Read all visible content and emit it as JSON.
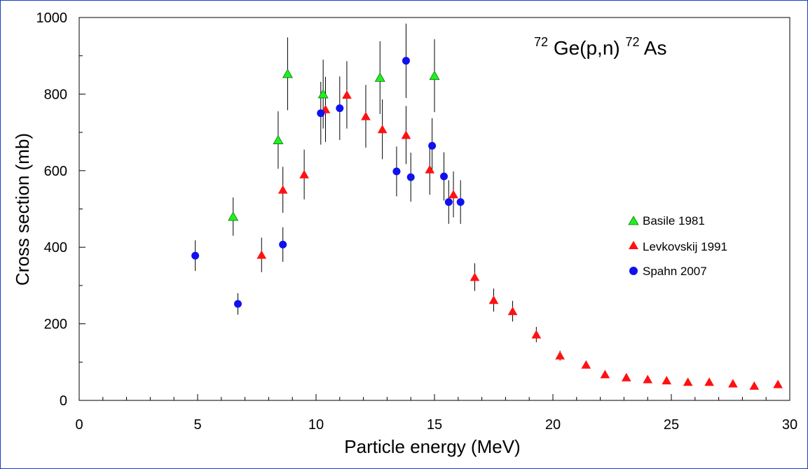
{
  "chart_data": {
    "type": "scatter",
    "title_parts": {
      "sup1": "72",
      "main1": "Ge(p,n)",
      "sup2": "72",
      "main2": "As"
    },
    "xlabel": "Particle energy (MeV)",
    "ylabel": "Cross section (mb)",
    "xlim": [
      0,
      30
    ],
    "ylim": [
      0,
      1000
    ],
    "xticks": [
      0,
      5,
      10,
      15,
      20,
      25,
      30
    ],
    "yticks": [
      0,
      200,
      400,
      600,
      800,
      1000
    ],
    "xtick_labels": [
      "0",
      "5",
      "10",
      "15",
      "20",
      "25",
      "30"
    ],
    "ytick_labels": [
      "0",
      "200",
      "400",
      "600",
      "800",
      "1000"
    ],
    "grid": false,
    "legend_position": "right",
    "series": [
      {
        "name": "Basile 1981",
        "marker": "triangle",
        "color": "#22ee22",
        "points": [
          {
            "x": 6.5,
            "y": 480,
            "err": 50
          },
          {
            "x": 8.4,
            "y": 680,
            "err": 75
          },
          {
            "x": 8.8,
            "y": 853,
            "err": 95
          },
          {
            "x": 10.3,
            "y": 800,
            "err": 90
          },
          {
            "x": 12.7,
            "y": 843,
            "err": 95
          },
          {
            "x": 15.0,
            "y": 848,
            "err": 95
          }
        ]
      },
      {
        "name": "Levkovskij 1991",
        "marker": "triangle",
        "color": "#ff1111",
        "points": [
          {
            "x": 7.7,
            "y": 380,
            "err": 45
          },
          {
            "x": 8.6,
            "y": 550,
            "err": 60
          },
          {
            "x": 9.5,
            "y": 590,
            "err": 65
          },
          {
            "x": 10.4,
            "y": 760,
            "err": 85
          },
          {
            "x": 11.3,
            "y": 798,
            "err": 88
          },
          {
            "x": 12.1,
            "y": 742,
            "err": 82
          },
          {
            "x": 12.8,
            "y": 708,
            "err": 78
          },
          {
            "x": 13.8,
            "y": 693,
            "err": 76
          },
          {
            "x": 14.8,
            "y": 603,
            "err": 66
          },
          {
            "x": 15.8,
            "y": 538,
            "err": 60
          },
          {
            "x": 16.7,
            "y": 322,
            "err": 36
          },
          {
            "x": 17.5,
            "y": 262,
            "err": 30
          },
          {
            "x": 18.3,
            "y": 233,
            "err": 27
          },
          {
            "x": 19.3,
            "y": 172,
            "err": 20
          },
          {
            "x": 20.3,
            "y": 117,
            "err": 13
          },
          {
            "x": 21.4,
            "y": 93,
            "err": 10
          },
          {
            "x": 22.2,
            "y": 68,
            "err": 8
          },
          {
            "x": 23.1,
            "y": 60,
            "err": 7
          },
          {
            "x": 24.0,
            "y": 55,
            "err": 6
          },
          {
            "x": 24.8,
            "y": 52,
            "err": 6
          },
          {
            "x": 25.7,
            "y": 48,
            "err": 5
          },
          {
            "x": 26.6,
            "y": 48,
            "err": 5
          },
          {
            "x": 27.6,
            "y": 44,
            "err": 5
          },
          {
            "x": 28.5,
            "y": 38,
            "err": 4
          },
          {
            "x": 29.5,
            "y": 42,
            "err": 5
          }
        ]
      },
      {
        "name": "Spahn 2007",
        "marker": "circle",
        "color": "#1111ee",
        "points": [
          {
            "x": 4.9,
            "y": 378,
            "err": 40
          },
          {
            "x": 6.7,
            "y": 252,
            "err": 28
          },
          {
            "x": 8.6,
            "y": 407,
            "err": 45
          },
          {
            "x": 10.2,
            "y": 750,
            "err": 82
          },
          {
            "x": 11.0,
            "y": 763,
            "err": 83
          },
          {
            "x": 13.4,
            "y": 598,
            "err": 65
          },
          {
            "x": 13.8,
            "y": 887,
            "err": 97
          },
          {
            "x": 14.0,
            "y": 583,
            "err": 64
          },
          {
            "x": 14.9,
            "y": 665,
            "err": 72
          },
          {
            "x": 15.4,
            "y": 585,
            "err": 63
          },
          {
            "x": 15.6,
            "y": 518,
            "err": 57
          },
          {
            "x": 16.1,
            "y": 518,
            "err": 57
          }
        ]
      }
    ]
  }
}
